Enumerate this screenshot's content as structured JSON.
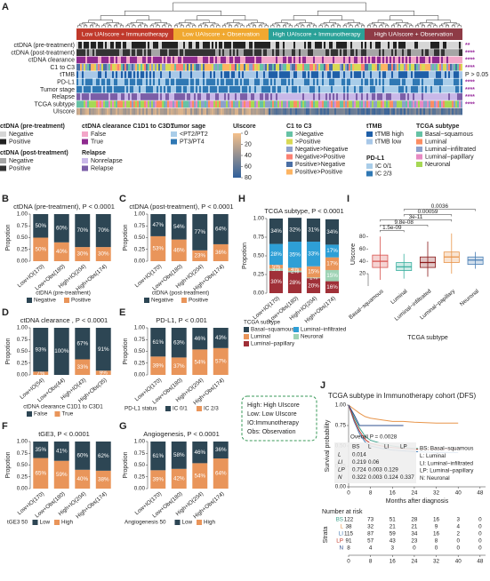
{
  "panel_a": {
    "label": "A",
    "groups": [
      {
        "name": "Low UAIscore + Immunotherapy",
        "color": "#c0392b"
      },
      {
        "name": "Low UAIscore + Observation",
        "color": "#f0a830"
      },
      {
        "name": "High UAIscore + Immunotherapy",
        "color": "#2aa198"
      },
      {
        "name": "High UAIscore + Observation",
        "color": "#8e3b46"
      }
    ],
    "rows": [
      {
        "name": "ctDNA (pre-treatment)",
        "p": "**"
      },
      {
        "name": "ctDNA (post-treatment)",
        "p": "****"
      },
      {
        "name": "ctDNA clearance",
        "p": "****"
      },
      {
        "name": "C1 to C3",
        "p": "****"
      },
      {
        "name": "tTMB",
        "p": "P > 0.05"
      },
      {
        "name": "PD-L1",
        "p": "****"
      },
      {
        "name": "Tumor stage",
        "p": "****"
      },
      {
        "name": "Relapse",
        "p": "****"
      },
      {
        "name": "TCGA subtype",
        "p": "****"
      },
      {
        "name": "UIscore"
      }
    ],
    "legends": [
      {
        "title": "ctDNA (pre-treatment)",
        "items": [
          {
            "name": "Negative",
            "color": "#d6d6d6"
          },
          {
            "name": "Positive",
            "color": "#222222"
          }
        ]
      },
      {
        "title": "ctDNA clearance C1D1 to C3D1",
        "items": [
          {
            "name": "False",
            "color": "#f3a6c8"
          },
          {
            "name": "True",
            "color": "#8e2a8e"
          }
        ]
      },
      {
        "title": "ctDNA (post-treatment)",
        "items": [
          {
            "name": "Negative",
            "color": "#a6a6a6"
          },
          {
            "name": "Positive",
            "color": "#333333"
          }
        ]
      },
      {
        "title": "Relapse",
        "items": [
          {
            "name": "Nonrelapse",
            "color": "#c9b8e8"
          },
          {
            "name": "Relapse",
            "color": "#7b5ea7"
          }
        ]
      },
      {
        "title": "Tumor sage",
        "items": [
          {
            "name": "<PT2/PT2",
            "color": "#a9cde9"
          },
          {
            "name": "PT3/PT4",
            "color": "#2f78b4"
          }
        ]
      },
      {
        "title": "UIscore",
        "colorbar": [
          0,
          20,
          40,
          60,
          80
        ],
        "colors": [
          "#f5c08a",
          "#2f5f9a"
        ]
      },
      {
        "title": "C1 to C3",
        "items": [
          {
            "name": ">Negative",
            "color": "#66c2a5"
          },
          {
            "name": ">Positive",
            "color": "#d9d955"
          },
          {
            "name": "Negative>Negative",
            "color": "#8da0cb"
          },
          {
            "name": "Negative>Positive",
            "color": "#fb8072"
          },
          {
            "name": "Positive>Negative",
            "color": "#4a6fa5"
          },
          {
            "name": "Positive>Positive",
            "color": "#fdb462"
          }
        ]
      },
      {
        "title": "tTMB",
        "items": [
          {
            "name": "tTMB high",
            "color": "#1f5fa8"
          },
          {
            "name": "tTMB low",
            "color": "#a8c8e8"
          }
        ]
      },
      {
        "title": "PD-L1",
        "items": [
          {
            "name": "IC 0/1",
            "color": "#a9cde9"
          },
          {
            "name": "IC 2/3",
            "color": "#2f78b4"
          }
        ]
      },
      {
        "title": "TCGA subtype",
        "items": [
          {
            "name": "Basal−squamous",
            "color": "#66c2a5"
          },
          {
            "name": "Luminal",
            "color": "#fc8d62"
          },
          {
            "name": "Luminal−infiltrated",
            "color": "#8da0cb"
          },
          {
            "name": "Luminal−papillary",
            "color": "#e78ac3"
          },
          {
            "name": "Neuronal",
            "color": "#a6d854"
          }
        ]
      }
    ]
  },
  "note": [
    "High: High UIscore",
    "Low: Low UIscore",
    "IO:Immunotherapy",
    "Obs: Observation"
  ],
  "chart_data": [
    {
      "type": "stacked_bar",
      "panel": "B",
      "title": "ctDNA (pre-treatment), P < 0.0001",
      "ylabel": "Propotion",
      "legend_title": "ctDNA (pre-treatment)",
      "categories": [
        "Low+IO(170)",
        "Low+Obs(180)",
        "High+IO(204)",
        "High+Obs(174)"
      ],
      "series": [
        {
          "name": "Negative",
          "color": "#2d4654",
          "values": [
            0.5,
            0.6,
            0.7,
            0.7
          ],
          "value_labels": [
            "50%",
            "60%",
            "70%",
            "70%"
          ]
        },
        {
          "name": "Positive",
          "color": "#e9955a",
          "values": [
            0.5,
            0.4,
            0.3,
            0.3
          ],
          "value_labels": [
            "50%",
            "40%",
            "30%",
            "30%"
          ]
        }
      ],
      "ylim": [
        0,
        1
      ],
      "yticks": [
        {
          "value": 0,
          "label": "0.00"
        },
        0.25,
        {
          "value": 0.5,
          "label": "0.50"
        },
        0.75,
        {
          "value": 1,
          "label": "1.00"
        }
      ]
    },
    {
      "type": "stacked_bar",
      "panel": "C",
      "title": "ctDNA (post-treatment), P < 0.0001",
      "ylabel": "Propotion",
      "legend_title": "ctDNA (post-treatment)",
      "categories": [
        "Low+IO(170)",
        "Low+Obs(180)",
        "High+IO(204)",
        "High+Obs(174)"
      ],
      "series": [
        {
          "name": "Negative",
          "color": "#2d4654",
          "values": [
            0.47,
            0.54,
            0.77,
            0.64
          ],
          "value_labels": [
            "47%",
            "54%",
            "77%",
            "64%"
          ]
        },
        {
          "name": "Positive",
          "color": "#e9955a",
          "values": [
            0.53,
            0.46,
            0.23,
            0.36
          ],
          "value_labels": [
            "53%",
            "46%",
            "23%",
            "36%"
          ]
        }
      ],
      "ylim": [
        0,
        1
      ],
      "yticks": [
        {
          "value": 0,
          "label": "0.00"
        },
        0.25,
        {
          "value": 0.5,
          "label": "0.50"
        },
        0.75,
        {
          "value": 1,
          "label": "1.00"
        }
      ]
    },
    {
      "type": "stacked_bar",
      "panel": "D",
      "title": "ctDNA clearance , P < 0.0001",
      "ylabel": "Propotion",
      "legend_title": "ctDNA clearance C1D1 to C3D1",
      "categories": [
        "Low+IO(54)",
        "Low+Obs(44)",
        "High+IO(43)",
        "High+Obs(35)"
      ],
      "series": [
        {
          "name": "False",
          "color": "#2d4654",
          "values": [
            0.93,
            1,
            0.67,
            0.91
          ],
          "value_labels": [
            "93%",
            "100%",
            "67%",
            "91%"
          ]
        },
        {
          "name": "True",
          "color": "#e9955a",
          "values": [
            0.07,
            0,
            0.33,
            0.09
          ],
          "value_labels": [
            "7%",
            null,
            "33%",
            "9%"
          ]
        }
      ],
      "ylim": [
        0,
        1
      ],
      "yticks": [
        {
          "value": 0,
          "label": "0.00"
        },
        0.25,
        {
          "value": 0.5,
          "label": "0.50"
        },
        0.75,
        {
          "value": 1,
          "label": "1.00"
        }
      ]
    },
    {
      "type": "stacked_bar",
      "panel": "E",
      "title": "PD-L1, P < 0.001",
      "ylabel": "Propotion",
      "legend_title": "PD-L1 status",
      "categories": [
        "Low+IO(170)",
        "Low+Obs(180)",
        "High+IO(204)",
        "High+Obs(174)"
      ],
      "series": [
        {
          "name": "IC 0/1",
          "color": "#2d4654",
          "values": [
            0.61,
            0.63,
            0.46,
            0.43
          ],
          "value_labels": [
            "61%",
            "63%",
            "46%",
            "43%"
          ]
        },
        {
          "name": "IC 2/3",
          "color": "#e9955a",
          "values": [
            0.39,
            0.37,
            0.54,
            0.57
          ],
          "value_labels": [
            "39%",
            "37%",
            "54%",
            "57%"
          ]
        }
      ],
      "ylim": [
        0,
        1
      ],
      "yticks": [
        {
          "value": 0,
          "label": "0.00"
        },
        0.25,
        {
          "value": 0.5,
          "label": "0.50"
        },
        0.75,
        {
          "value": 1,
          "label": "1.00"
        }
      ]
    },
    {
      "type": "stacked_bar",
      "panel": "F",
      "title": "tGE3, P < 0.0001",
      "ylabel": "Propotion",
      "legend_title": "tGE3 50",
      "categories": [
        "Low+IO(170)",
        "Low+Obs(180)",
        "High+IO(204)",
        "High+Obs(174)"
      ],
      "series": [
        {
          "name": "Low",
          "color": "#2d4654",
          "values": [
            0.35,
            0.41,
            0.6,
            0.62
          ],
          "value_labels": [
            "35%",
            "41%",
            "60%",
            "62%"
          ]
        },
        {
          "name": "High",
          "color": "#e9955a",
          "values": [
            0.65,
            0.59,
            0.4,
            0.38
          ],
          "value_labels": [
            "65%",
            "59%",
            "40%",
            "38%"
          ]
        }
      ],
      "ylim": [
        0,
        1
      ],
      "yticks": [
        {
          "value": 0,
          "label": "0.00"
        },
        0.25,
        {
          "value": 0.5,
          "label": "0.50"
        },
        0.75,
        {
          "value": 1,
          "label": "1.00"
        }
      ]
    },
    {
      "type": "stacked_bar",
      "panel": "G",
      "title": "Angiogenesis, P < 0.0001",
      "ylabel": "Propotion",
      "legend_title": "Angiogenesis 50",
      "categories": [
        "Low+IO(170)",
        "Low+Obs(180)",
        "High+IO(204)",
        "High+Obs(174)"
      ],
      "series": [
        {
          "name": "Low",
          "color": "#2d4654",
          "values": [
            0.61,
            0.58,
            0.46,
            0.36
          ],
          "value_labels": [
            "61%",
            "58%",
            "46%",
            "36%"
          ]
        },
        {
          "name": "High",
          "color": "#e9955a",
          "values": [
            0.39,
            0.42,
            0.54,
            0.64
          ],
          "value_labels": [
            "39%",
            "42%",
            "54%",
            "64%"
          ]
        }
      ],
      "ylim": [
        0,
        1
      ],
      "yticks": [
        {
          "value": 0,
          "label": "0.00"
        },
        0.25,
        {
          "value": 0.5,
          "label": "0.50"
        },
        0.75,
        {
          "value": 1,
          "label": "1.00"
        }
      ]
    },
    {
      "type": "stacked_bar",
      "panel": "H",
      "title": "TCGA subtype, P < 0.0001",
      "ylabel": "Propotion",
      "legend_title": "TCGA subtype",
      "categories": [
        "Low+IO(170)",
        "Low+Obs(180)",
        "High+IO(204)",
        "High+Obs(174)"
      ],
      "series": [
        {
          "name": "Basal−squamous",
          "color": "#2d4654",
          "values": [
            0.34,
            0.32,
            0.31,
            0.34
          ],
          "value_labels": [
            "34%",
            "32%",
            "31%",
            "34%"
          ]
        },
        {
          "name": "Luminal−infiltrated",
          "color": "#2e9fd6",
          "values": [
            0.28,
            0.35,
            0.33,
            0.17
          ],
          "value_labels": [
            "28%",
            "35%",
            "33%",
            "17%"
          ]
        },
        {
          "name": "Luminal",
          "color": "#e9955a",
          "values": [
            0.05,
            0.04,
            0.15,
            0.17
          ],
          "value_labels": [
            "5%",
            "4%",
            "15%",
            "17%"
          ]
        },
        {
          "name": "Neuronal",
          "color": "#9fd3b5",
          "values": [
            0.03,
            0.02,
            0.01,
            0.15
          ],
          "value_labels": [
            "3%",
            "2%",
            "1%",
            "15%"
          ]
        },
        {
          "name": "Luminal−papillary",
          "color": "#a03038",
          "values": [
            0.3,
            0.28,
            0.2,
            0.16
          ],
          "value_labels": [
            "30%",
            "28%",
            "20%",
            "16%"
          ]
        }
      ],
      "ylim": [
        0,
        1
      ],
      "yticks": [
        {
          "value": 0,
          "label": "0.00"
        },
        0.25,
        {
          "value": 0.5,
          "label": "0.50"
        },
        0.75,
        {
          "value": 1,
          "label": "1.00"
        }
      ]
    },
    {
      "type": "box",
      "panel": "I",
      "ylabel": "UIscore",
      "xlabel": "TCGA subtype",
      "categories": [
        "Basal−squamous",
        "Luminal",
        "Luminal−infiltrated",
        "Luminal−papillary",
        "Neuronal"
      ],
      "colors": [
        "#d9534f",
        "#3bb0a0",
        "#8b1a1a",
        "#e8954a",
        "#4a7fb5"
      ],
      "min": [
        10,
        12,
        15,
        20,
        28
      ],
      "q1": [
        30,
        25,
        30,
        38,
        35
      ],
      "median": [
        40,
        31,
        38,
        47,
        42
      ],
      "q3": [
        50,
        38,
        47,
        55,
        47
      ],
      "max": [
        80,
        52,
        72,
        85,
        55
      ],
      "ylim": [
        0,
        132
      ],
      "yticks": [
        20,
        40,
        60,
        80
      ],
      "comparisons": [
        {
          "pair": [
            0,
            1
          ],
          "label": "1.5e-09"
        },
        {
          "pair": [
            0,
            2
          ],
          "label": "9.8e-08"
        },
        {
          "pair": [
            0,
            3
          ],
          "label": "3e-11"
        },
        {
          "pair": [
            1,
            3
          ],
          "label": "0.00059"
        },
        {
          "pair": [
            1,
            4
          ],
          "label": "0.0036"
        }
      ]
    },
    {
      "type": "line",
      "panel": "J",
      "title": "TCGA subtype  in  Immunotherapy cohort (DFS)",
      "xlabel": "Months after diagnosis",
      "ylabel": "Survival probability",
      "x": [
        0,
        2,
        4,
        6,
        8,
        12,
        16,
        20,
        24,
        32,
        40
      ],
      "series": [
        {
          "name": "BS",
          "color": "#3aa08a",
          "values": [
            1,
            0.85,
            0.72,
            0.62,
            0.57,
            0.53,
            0.5,
            0.48,
            0.47,
            0.46,
            0.46
          ]
        },
        {
          "name": "L",
          "color": "#e8954a",
          "values": [
            1,
            0.95,
            0.9,
            0.86,
            0.84,
            0.82,
            0.8,
            0.8,
            0.79,
            0.78,
            0.78
          ]
        },
        {
          "name": "LI",
          "color": "#4a7fb5",
          "values": [
            1,
            0.8,
            0.65,
            0.55,
            0.5,
            0.47,
            0.45,
            0.44,
            0.43,
            0.42,
            0.42
          ]
        },
        {
          "name": "LP",
          "color": "#c0392b",
          "values": [
            1,
            0.82,
            0.68,
            0.58,
            0.53,
            0.5,
            0.48,
            0.47,
            0.46,
            0.46,
            0.46
          ]
        },
        {
          "name": "N",
          "color": "#2f4f8f",
          "values": [
            1,
            0.88,
            0.75,
            0.75,
            0.75,
            0.75,
            0.75,
            0.75,
            null,
            null,
            null
          ]
        }
      ],
      "xlim": [
        0,
        50
      ],
      "xticks": [
        0,
        8,
        16,
        24,
        32,
        40,
        48
      ],
      "ylim": [
        0,
        1
      ],
      "yticks": [
        {
          "value": 0,
          "label": "0.00"
        },
        0.25,
        {
          "value": 0.5,
          "label": "0.50"
        },
        0.75,
        {
          "value": 1,
          "label": "1.00"
        }
      ],
      "overall_p": "Overall P = 0.0028",
      "pvalue_table": {
        "columns": [
          "BS",
          "L",
          "LI",
          "LP"
        ],
        "rows": [
          {
            "name": "L",
            "values": [
              0.014
            ]
          },
          {
            "name": "LI",
            "values": [
              0.219,
              0.06
            ]
          },
          {
            "name": "LP",
            "values": [
              0.724,
              0.003,
              0.129
            ]
          },
          {
            "name": "N",
            "values": [
              0.322,
              0.003,
              0.124,
              0.337
            ]
          }
        ]
      },
      "abbreviations": [
        "BS: Basal−squamous",
        "L: Luminal",
        "LI: Luminal−infiltrated",
        "LP: Luminal−papillary",
        "N: Neuronal"
      ],
      "risk_title": "Number at risk",
      "strata_label": "Strata",
      "risk_counts": [
        [
          122,
          73,
          51,
          28,
          16,
          3,
          0
        ],
        [
          38,
          32,
          21,
          21,
          9,
          4,
          0
        ],
        [
          115,
          87,
          59,
          34,
          16,
          2,
          0
        ],
        [
          91,
          57,
          43,
          23,
          8,
          0,
          0
        ],
        [
          8,
          4,
          3,
          0,
          0,
          0,
          0
        ]
      ]
    }
  ]
}
